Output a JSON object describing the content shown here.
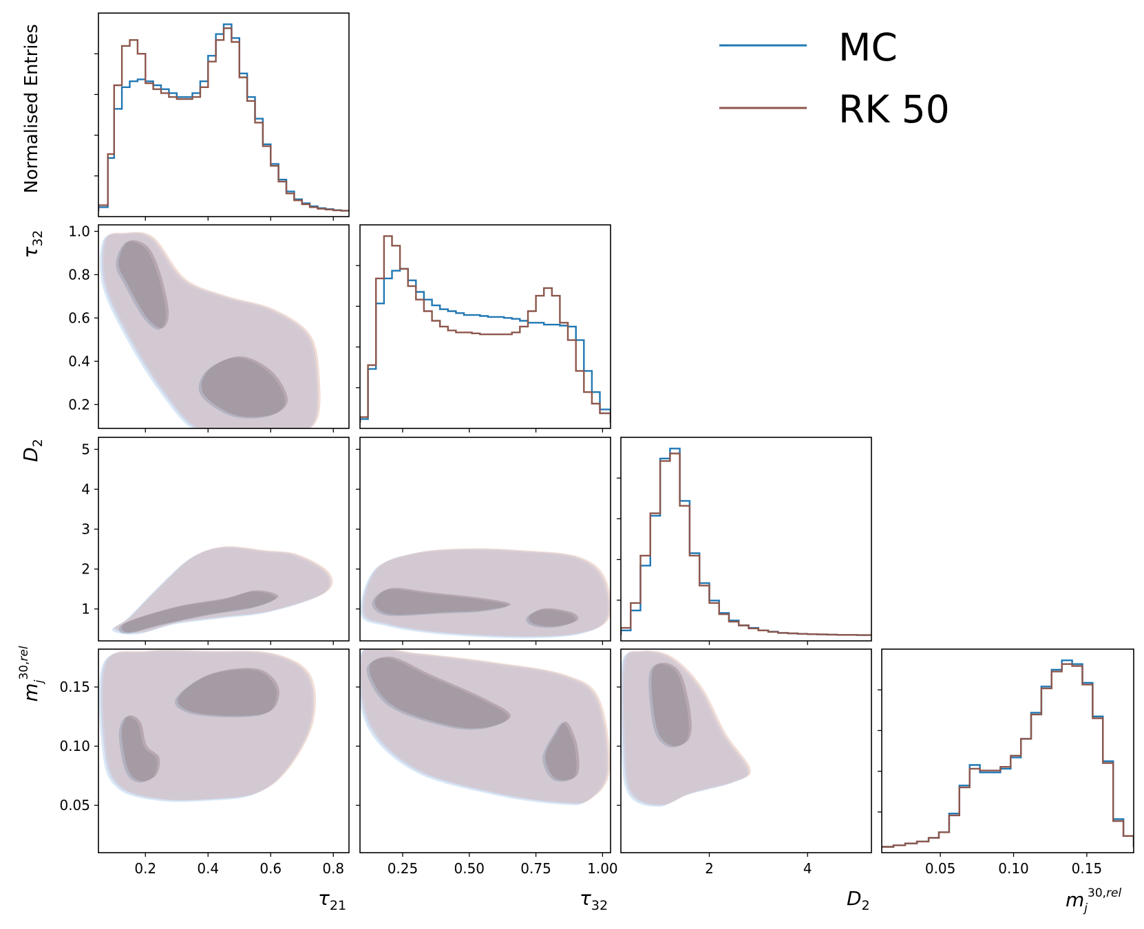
{
  "chart_data": {
    "type": "corner",
    "legend": {
      "position": "top-right",
      "entries": [
        {
          "label": "MC",
          "color": "#1f77b4"
        },
        {
          "label": "RK 50",
          "color": "#8c564b"
        }
      ]
    },
    "axis_labels": {
      "diag0_ylabel": "Normalised Entries",
      "tau21": "τ21",
      "tau32": "τ32",
      "D2": "D2",
      "mj": "m_j^{30,rel}"
    },
    "ticks": {
      "tau21": [
        "0.2",
        "0.4",
        "0.6",
        "0.8"
      ],
      "tau32_x": [
        "0.25",
        "0.50",
        "0.75",
        "1.00"
      ],
      "tau32_y": [
        "0.2",
        "0.4",
        "0.6",
        "0.8",
        "1.0"
      ],
      "D2_x": [
        "2",
        "4"
      ],
      "D2_y": [
        "1",
        "2",
        "3",
        "4",
        "5"
      ],
      "mj_x": [
        "0.05",
        "0.10",
        "0.15"
      ],
      "mj_y": [
        "0.05",
        "0.10",
        "0.15"
      ]
    },
    "ranges": {
      "tau21": [
        0.05,
        0.85
      ],
      "tau32": [
        0.09,
        1.03
      ],
      "D2": [
        0.2,
        5.3
      ],
      "mj": [
        0.01,
        0.182
      ]
    },
    "histograms": [
      {
        "variable": "tau21",
        "bin_edges": [
          0.05,
          0.08,
          0.1,
          0.125,
          0.15,
          0.175,
          0.2,
          0.225,
          0.25,
          0.275,
          0.3,
          0.325,
          0.35,
          0.375,
          0.4,
          0.425,
          0.45,
          0.475,
          0.5,
          0.525,
          0.55,
          0.575,
          0.6,
          0.625,
          0.65,
          0.675,
          0.7,
          0.725,
          0.75,
          0.775,
          0.8,
          0.825,
          0.85
        ],
        "series": [
          {
            "name": "MC",
            "values": [
              0.02,
              0.27,
              0.52,
              0.63,
              0.66,
              0.67,
              0.66,
              0.64,
              0.62,
              0.6,
              0.58,
              0.58,
              0.6,
              0.66,
              0.79,
              0.9,
              0.95,
              0.88,
              0.7,
              0.58,
              0.47,
              0.34,
              0.24,
              0.16,
              0.1,
              0.06,
              0.04,
              0.025,
              0.015,
              0.01,
              0.005,
              0.002
            ]
          },
          {
            "name": "RK 50",
            "values": [
              0.03,
              0.29,
              0.64,
              0.84,
              0.87,
              0.8,
              0.65,
              0.62,
              0.6,
              0.58,
              0.57,
              0.57,
              0.58,
              0.63,
              0.76,
              0.87,
              0.93,
              0.86,
              0.68,
              0.56,
              0.45,
              0.33,
              0.23,
              0.15,
              0.09,
              0.055,
              0.035,
              0.02,
              0.012,
              0.008,
              0.004,
              0.002
            ]
          }
        ]
      },
      {
        "variable": "tau32",
        "bin_edges": [
          0.09,
          0.12,
          0.15,
          0.18,
          0.21,
          0.24,
          0.27,
          0.3,
          0.33,
          0.36,
          0.39,
          0.42,
          0.45,
          0.48,
          0.51,
          0.54,
          0.57,
          0.6,
          0.63,
          0.66,
          0.69,
          0.72,
          0.75,
          0.78,
          0.81,
          0.84,
          0.87,
          0.9,
          0.93,
          0.96,
          0.99,
          1.03
        ],
        "series": [
          {
            "name": "MC",
            "values": [
              0.02,
              0.28,
              0.62,
              0.75,
              0.79,
              0.8,
              0.74,
              0.68,
              0.64,
              0.61,
              0.59,
              0.58,
              0.57,
              0.56,
              0.56,
              0.555,
              0.55,
              0.55,
              0.545,
              0.54,
              0.53,
              0.52,
              0.52,
              0.51,
              0.51,
              0.505,
              0.5,
              0.43,
              0.27,
              0.16,
              0.07
            ]
          },
          {
            "name": "RK 50",
            "values": [
              0.03,
              0.3,
              0.75,
              0.97,
              0.92,
              0.8,
              0.71,
              0.64,
              0.58,
              0.53,
              0.5,
              0.48,
              0.47,
              0.47,
              0.465,
              0.46,
              0.46,
              0.46,
              0.46,
              0.47,
              0.5,
              0.58,
              0.66,
              0.7,
              0.66,
              0.52,
              0.43,
              0.27,
              0.16,
              0.1,
              0.05
            ]
          }
        ]
      },
      {
        "variable": "D2",
        "bin_edges": [
          0.2,
          0.4,
          0.6,
          0.8,
          1.0,
          1.2,
          1.4,
          1.6,
          1.8,
          2.0,
          2.2,
          2.4,
          2.6,
          2.8,
          3.0,
          3.2,
          3.4,
          3.6,
          3.8,
          4.0,
          4.2,
          4.4,
          4.6,
          4.8,
          5.0,
          5.3
        ],
        "series": [
          {
            "name": "MC",
            "values": [
              0.02,
              0.1,
              0.28,
              0.48,
              0.71,
              0.75,
              0.54,
              0.33,
              0.21,
              0.14,
              0.09,
              0.06,
              0.04,
              0.03,
              0.02,
              0.015,
              0.01,
              0.008,
              0.006,
              0.005,
              0.004,
              0.003,
              0.002,
              0.002,
              0.001
            ]
          },
          {
            "name": "RK 50",
            "values": [
              0.03,
              0.13,
              0.32,
              0.49,
              0.7,
              0.73,
              0.52,
              0.32,
              0.2,
              0.13,
              0.085,
              0.055,
              0.04,
              0.028,
              0.02,
              0.014,
              0.01,
              0.008,
              0.006,
              0.005,
              0.004,
              0.003,
              0.002,
              0.002,
              0.001
            ]
          }
        ]
      },
      {
        "variable": "mj",
        "bin_edges": [
          0.01,
          0.018,
          0.026,
          0.034,
          0.042,
          0.049,
          0.056,
          0.063,
          0.07,
          0.077,
          0.084,
          0.091,
          0.098,
          0.105,
          0.112,
          0.119,
          0.126,
          0.133,
          0.14,
          0.147,
          0.154,
          0.161,
          0.168,
          0.175,
          0.182
        ],
        "series": [
          {
            "name": "MC",
            "values": [
              0.002,
              0.01,
              0.02,
              0.03,
              0.05,
              0.08,
              0.18,
              0.33,
              0.44,
              0.4,
              0.4,
              0.42,
              0.48,
              0.58,
              0.72,
              0.86,
              0.95,
              1.0,
              0.98,
              0.88,
              0.7,
              0.46,
              0.15,
              0.06
            ]
          },
          {
            "name": "RK 50",
            "values": [
              0.002,
              0.01,
              0.02,
              0.03,
              0.05,
              0.08,
              0.17,
              0.32,
              0.42,
              0.41,
              0.41,
              0.43,
              0.49,
              0.58,
              0.71,
              0.85,
              0.94,
              0.98,
              0.97,
              0.87,
              0.69,
              0.45,
              0.14,
              0.06
            ]
          }
        ]
      }
    ],
    "contours": [
      {
        "x": "tau21",
        "y": "tau32",
        "outer": [
          [
            0.07,
            0.96
          ],
          [
            0.13,
            0.99
          ],
          [
            0.22,
            0.97
          ],
          [
            0.32,
            0.78
          ],
          [
            0.45,
            0.7
          ],
          [
            0.6,
            0.64
          ],
          [
            0.72,
            0.52
          ],
          [
            0.75,
            0.32
          ],
          [
            0.74,
            0.12
          ],
          [
            0.65,
            0.06
          ],
          [
            0.45,
            0.06
          ],
          [
            0.35,
            0.1
          ],
          [
            0.25,
            0.27
          ],
          [
            0.15,
            0.5
          ],
          [
            0.07,
            0.75
          ]
        ],
        "inner": [
          [
            [
              0.11,
              0.85
            ],
            [
              0.14,
              0.95
            ],
            [
              0.2,
              0.93
            ],
            [
              0.24,
              0.82
            ],
            [
              0.27,
              0.63
            ],
            [
              0.25,
              0.55
            ],
            [
              0.2,
              0.6
            ],
            [
              0.14,
              0.75
            ]
          ],
          [
            [
              0.38,
              0.25
            ],
            [
              0.4,
              0.36
            ],
            [
              0.5,
              0.42
            ],
            [
              0.6,
              0.35
            ],
            [
              0.65,
              0.22
            ],
            [
              0.6,
              0.15
            ],
            [
              0.48,
              0.15
            ]
          ]
        ]
      },
      {
        "x": "tau21",
        "y": "D2",
        "outer": [
          [
            0.1,
            0.5
          ],
          [
            0.15,
            0.8
          ],
          [
            0.25,
            1.6
          ],
          [
            0.35,
            2.3
          ],
          [
            0.45,
            2.55
          ],
          [
            0.58,
            2.45
          ],
          [
            0.68,
            2.35
          ],
          [
            0.78,
            1.9
          ],
          [
            0.77,
            1.4
          ],
          [
            0.6,
            0.95
          ],
          [
            0.45,
            0.8
          ],
          [
            0.3,
            0.65
          ],
          [
            0.18,
            0.4
          ]
        ],
        "inner": [
          [
            [
              0.12,
              0.5
            ],
            [
              0.15,
              0.7
            ],
            [
              0.3,
              1.05
            ],
            [
              0.45,
              1.25
            ],
            [
              0.55,
              1.45
            ],
            [
              0.62,
              1.3
            ],
            [
              0.55,
              1.05
            ],
            [
              0.4,
              0.85
            ],
            [
              0.25,
              0.6
            ],
            [
              0.15,
              0.4
            ]
          ]
        ]
      },
      {
        "x": "tau32",
        "y": "D2",
        "outer": [
          [
            0.1,
            0.9
          ],
          [
            0.15,
            2.0
          ],
          [
            0.3,
            2.4
          ],
          [
            0.5,
            2.5
          ],
          [
            0.7,
            2.45
          ],
          [
            0.9,
            2.3
          ],
          [
            1.0,
            1.8
          ],
          [
            1.02,
            0.8
          ],
          [
            0.92,
            0.4
          ],
          [
            0.7,
            0.3
          ],
          [
            0.4,
            0.4
          ],
          [
            0.2,
            0.6
          ]
        ],
        "inner": [
          [
            [
              0.14,
              1.15
            ],
            [
              0.2,
              1.5
            ],
            [
              0.35,
              1.4
            ],
            [
              0.55,
              1.25
            ],
            [
              0.65,
              1.1
            ],
            [
              0.55,
              0.95
            ],
            [
              0.4,
              0.9
            ],
            [
              0.2,
              0.85
            ]
          ],
          [
            [
              0.72,
              0.8
            ],
            [
              0.78,
              1.0
            ],
            [
              0.88,
              0.9
            ],
            [
              0.9,
              0.7
            ],
            [
              0.82,
              0.55
            ],
            [
              0.74,
              0.6
            ]
          ]
        ]
      },
      {
        "x": "tau21",
        "y": "mj",
        "outer": [
          [
            0.07,
            0.17
          ],
          [
            0.2,
            0.18
          ],
          [
            0.4,
            0.18
          ],
          [
            0.6,
            0.178
          ],
          [
            0.72,
            0.16
          ],
          [
            0.73,
            0.12
          ],
          [
            0.65,
            0.08
          ],
          [
            0.55,
            0.06
          ],
          [
            0.4,
            0.055
          ],
          [
            0.25,
            0.055
          ],
          [
            0.12,
            0.065
          ],
          [
            0.07,
            0.095
          ]
        ],
        "inner": [
          [
            [
              0.12,
              0.11
            ],
            [
              0.14,
              0.125
            ],
            [
              0.18,
              0.12
            ],
            [
              0.2,
              0.1
            ],
            [
              0.24,
              0.09
            ],
            [
              0.23,
              0.075
            ],
            [
              0.18,
              0.07
            ],
            [
              0.14,
              0.08
            ]
          ],
          [
            [
              0.3,
              0.14
            ],
            [
              0.4,
              0.16
            ],
            [
              0.55,
              0.165
            ],
            [
              0.62,
              0.15
            ],
            [
              0.6,
              0.13
            ],
            [
              0.5,
              0.125
            ],
            [
              0.35,
              0.128
            ]
          ]
        ]
      },
      {
        "x": "tau32",
        "y": "mj",
        "outer": [
          [
            0.1,
            0.18
          ],
          [
            0.3,
            0.178
          ],
          [
            0.6,
            0.17
          ],
          [
            0.85,
            0.16
          ],
          [
            0.98,
            0.14
          ],
          [
            1.02,
            0.08
          ],
          [
            0.95,
            0.055
          ],
          [
            0.85,
            0.052
          ],
          [
            0.6,
            0.06
          ],
          [
            0.3,
            0.08
          ],
          [
            0.12,
            0.12
          ]
        ],
        "inner": [
          [
            [
              0.12,
              0.165
            ],
            [
              0.2,
              0.175
            ],
            [
              0.35,
              0.16
            ],
            [
              0.55,
              0.14
            ],
            [
              0.65,
              0.125
            ],
            [
              0.55,
              0.115
            ],
            [
              0.4,
              0.118
            ],
            [
              0.2,
              0.135
            ]
          ],
          [
            [
              0.78,
              0.09
            ],
            [
              0.82,
              0.11
            ],
            [
              0.86,
              0.12
            ],
            [
              0.9,
              0.1
            ],
            [
              0.9,
              0.075
            ],
            [
              0.82,
              0.072
            ]
          ]
        ]
      },
      {
        "x": "D2",
        "y": "mj",
        "outer": [
          [
            0.25,
            0.17
          ],
          [
            0.6,
            0.18
          ],
          [
            1.2,
            0.175
          ],
          [
            1.8,
            0.15
          ],
          [
            2.3,
            0.11
          ],
          [
            2.8,
            0.08
          ],
          [
            2.5,
            0.07
          ],
          [
            1.6,
            0.06
          ],
          [
            1.0,
            0.05
          ],
          [
            0.4,
            0.06
          ],
          [
            0.25,
            0.1
          ]
        ],
        "inner": [
          [
            [
              0.8,
              0.16
            ],
            [
              1.05,
              0.17
            ],
            [
              1.4,
              0.16
            ],
            [
              1.6,
              0.125
            ],
            [
              1.55,
              0.105
            ],
            [
              1.2,
              0.1
            ],
            [
              0.9,
              0.115
            ]
          ]
        ]
      }
    ]
  }
}
